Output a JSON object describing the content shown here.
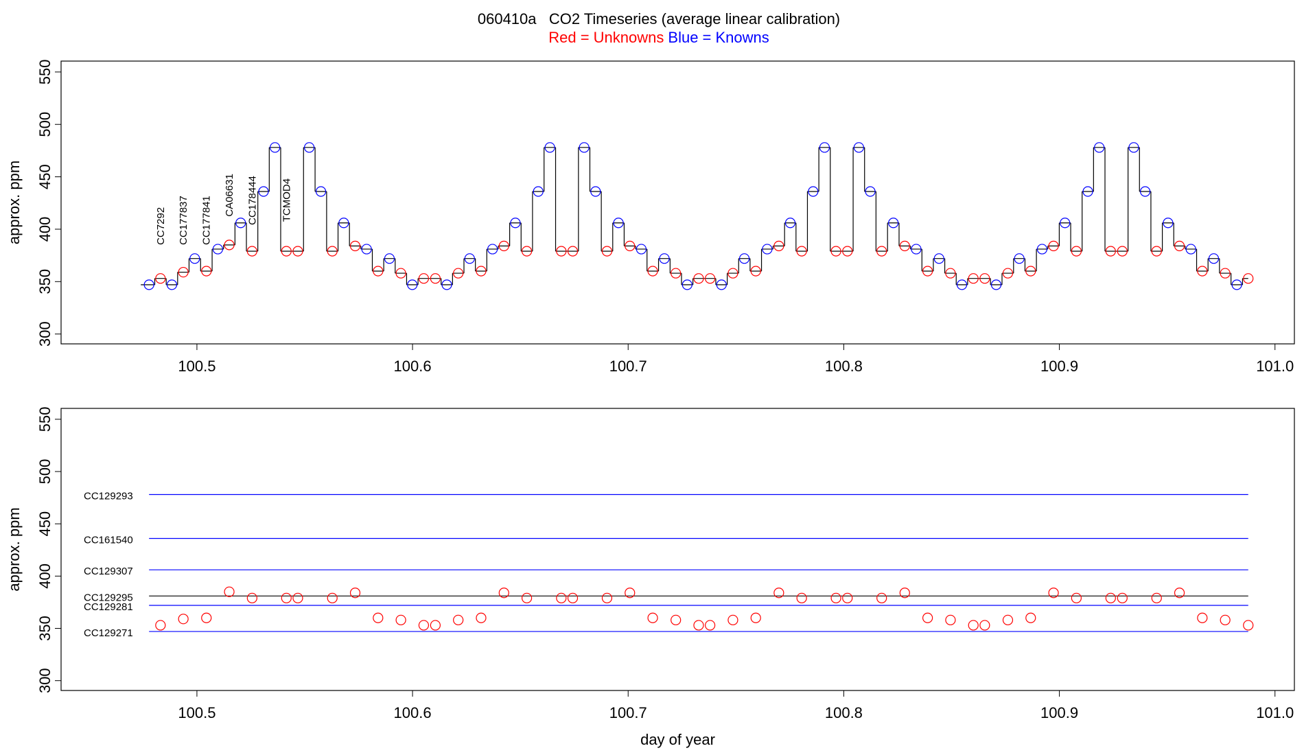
{
  "chart_data": [
    {
      "type": "step-scatter",
      "title": "060410a   CO2 Timeseries (average linear calibration)",
      "subtitle": [
        "Red = Unknowns",
        "Blue = Knowns"
      ],
      "subtitle_colors": [
        "#ff0000",
        "#0000ff"
      ],
      "y_label": "approx. ppm",
      "x": [
        100.4778,
        100.4831,
        100.4884,
        100.4937,
        100.499,
        100.5044,
        100.5097,
        100.515,
        100.5203,
        100.5256,
        100.5309,
        100.5362,
        100.5415,
        100.5468,
        100.5521,
        100.5575,
        100.5628,
        100.5681,
        100.5734,
        100.5787,
        100.584,
        100.5893,
        100.5946,
        100.5999,
        100.6052,
        100.6106,
        100.6159,
        100.6212,
        100.6265,
        100.6318,
        100.6371,
        100.6424,
        100.6477,
        100.653,
        100.6583,
        100.6637,
        100.669,
        100.6743,
        100.6796,
        100.6849,
        100.6902,
        100.6955,
        100.7008,
        100.7061,
        100.7114,
        100.7168,
        100.7221,
        100.7274,
        100.7327,
        100.738,
        100.7433,
        100.7486,
        100.7539,
        100.7592,
        100.7645,
        100.7699,
        100.7752,
        100.7805,
        100.7858,
        100.7911,
        100.7964,
        100.8017,
        100.807,
        100.8123,
        100.8176,
        100.823,
        100.8283,
        100.8336,
        100.8389,
        100.8442,
        100.8495,
        100.8548,
        100.8601,
        100.8654,
        100.8707,
        100.8761,
        100.8814,
        100.8867,
        100.892,
        100.8973,
        100.9026,
        100.9079,
        100.9132,
        100.9185,
        100.9238,
        100.9292,
        100.9345,
        100.9398,
        100.9451,
        100.9504,
        100.9557,
        100.961,
        100.9663,
        100.9716,
        100.9769,
        100.9823,
        100.9876
      ],
      "values": [
        347,
        353,
        347,
        359,
        372,
        360,
        381,
        385,
        406,
        379,
        436,
        478,
        379,
        379,
        478,
        436,
        379,
        406,
        384,
        381,
        360,
        372,
        358,
        347,
        353,
        353,
        347,
        358,
        372,
        360,
        381,
        384,
        406,
        379,
        436,
        478,
        379,
        379,
        478,
        436,
        379,
        406,
        384,
        381,
        360,
        372,
        358,
        347,
        353,
        353,
        347,
        358,
        372,
        360,
        381,
        384,
        406,
        379,
        436,
        478,
        379,
        379,
        478,
        436,
        379,
        406,
        384,
        381,
        360,
        372,
        358,
        347,
        353,
        353,
        347,
        358,
        372,
        360,
        381,
        384,
        406,
        379,
        436,
        478,
        379,
        379,
        478,
        436,
        379,
        406,
        384,
        381,
        360,
        372,
        358,
        347,
        353
      ],
      "point_colors": [
        "blue",
        "red",
        "blue",
        "red",
        "blue",
        "red",
        "blue",
        "red",
        "blue",
        "red",
        "blue",
        "blue",
        "red",
        "red",
        "blue",
        "blue",
        "red",
        "blue",
        "red",
        "blue",
        "red",
        "blue",
        "red",
        "blue",
        "red",
        "red",
        "blue",
        "red",
        "blue",
        "red",
        "blue",
        "red",
        "blue",
        "red",
        "blue",
        "blue",
        "red",
        "red",
        "blue",
        "blue",
        "red",
        "blue",
        "red",
        "blue",
        "red",
        "blue",
        "red",
        "blue",
        "red",
        "red",
        "blue",
        "red",
        "blue",
        "red",
        "blue",
        "red",
        "blue",
        "red",
        "blue",
        "blue",
        "red",
        "red",
        "blue",
        "blue",
        "red",
        "blue",
        "red",
        "blue",
        "red",
        "blue",
        "red",
        "blue",
        "red",
        "red",
        "blue",
        "red",
        "blue",
        "red",
        "blue",
        "red",
        "blue",
        "red",
        "blue",
        "blue",
        "red",
        "red",
        "blue",
        "blue",
        "red",
        "blue",
        "red",
        "blue",
        "red",
        "blue",
        "red",
        "blue",
        "red"
      ],
      "line_color": "#000000",
      "annotations": [
        {
          "text": "CC7292",
          "x": 100.4831,
          "y": 385
        },
        {
          "text": "CC177837",
          "x": 100.4937,
          "y": 385
        },
        {
          "text": "CC177841",
          "x": 100.5044,
          "y": 385
        },
        {
          "text": "CA06631",
          "x": 100.515,
          "y": 412
        },
        {
          "text": "CC178444",
          "x": 100.5256,
          "y": 404
        },
        {
          "text": "TCMOD4",
          "x": 100.5415,
          "y": 407
        }
      ],
      "annotation_color": "#ff0000",
      "xlim": [
        100.437,
        101.009
      ],
      "ylim": [
        290.6,
        560.4
      ],
      "xticks": [
        100.5,
        100.6,
        100.7,
        100.8,
        100.9,
        {
          "value": 101,
          "label": "101.0"
        }
      ],
      "yticks": [
        300,
        350,
        400,
        450,
        500,
        550
      ]
    },
    {
      "type": "reference-scatter",
      "y_label": "approx. ppm",
      "x_label": "day of year",
      "standards": [
        {
          "name": "CC129293",
          "value": 478,
          "color": "#0000ff"
        },
        {
          "name": "CC161540",
          "value": 436,
          "color": "#0000ff"
        },
        {
          "name": "CC129307",
          "value": 406,
          "color": "#0000ff"
        },
        {
          "name": "CC129295",
          "value": 381,
          "color": "#000000"
        },
        {
          "name": "CC129281",
          "value": 372,
          "color": "#0000ff"
        },
        {
          "name": "CC129271",
          "value": 347,
          "color": "#0000ff"
        }
      ],
      "standard_xlim": [
        100.4778,
        100.9876
      ],
      "x": [
        100.4831,
        100.4937,
        100.5044,
        100.515,
        100.5256,
        100.5415,
        100.5468,
        100.5628,
        100.5734,
        100.584,
        100.5946,
        100.6052,
        100.6106,
        100.6212,
        100.6318,
        100.6424,
        100.653,
        100.669,
        100.6743,
        100.6902,
        100.7008,
        100.7114,
        100.7221,
        100.7327,
        100.738,
        100.7486,
        100.7592,
        100.7699,
        100.7805,
        100.7964,
        100.8017,
        100.8176,
        100.8283,
        100.8389,
        100.8495,
        100.8601,
        100.8654,
        100.8761,
        100.8867,
        100.8973,
        100.9079,
        100.9238,
        100.9292,
        100.9451,
        100.9557,
        100.9663,
        100.9769,
        100.9876
      ],
      "values": [
        353,
        359,
        360,
        385,
        379,
        379,
        379,
        379,
        384,
        360,
        358,
        353,
        353,
        358,
        360,
        384,
        379,
        379,
        379,
        379,
        384,
        360,
        358,
        353,
        353,
        358,
        360,
        384,
        379,
        379,
        379,
        379,
        384,
        360,
        358,
        353,
        353,
        358,
        360,
        384,
        379,
        379,
        379,
        379,
        384,
        360,
        358,
        353
      ],
      "color": "#ff0000",
      "xlim": [
        100.437,
        101.009
      ],
      "ylim": [
        290.6,
        560.4
      ],
      "xticks": [
        100.5,
        100.6,
        100.7,
        100.8,
        100.9,
        {
          "value": 101,
          "label": "101.0"
        }
      ],
      "yticks": [
        300,
        350,
        400,
        450,
        500,
        550
      ]
    }
  ]
}
